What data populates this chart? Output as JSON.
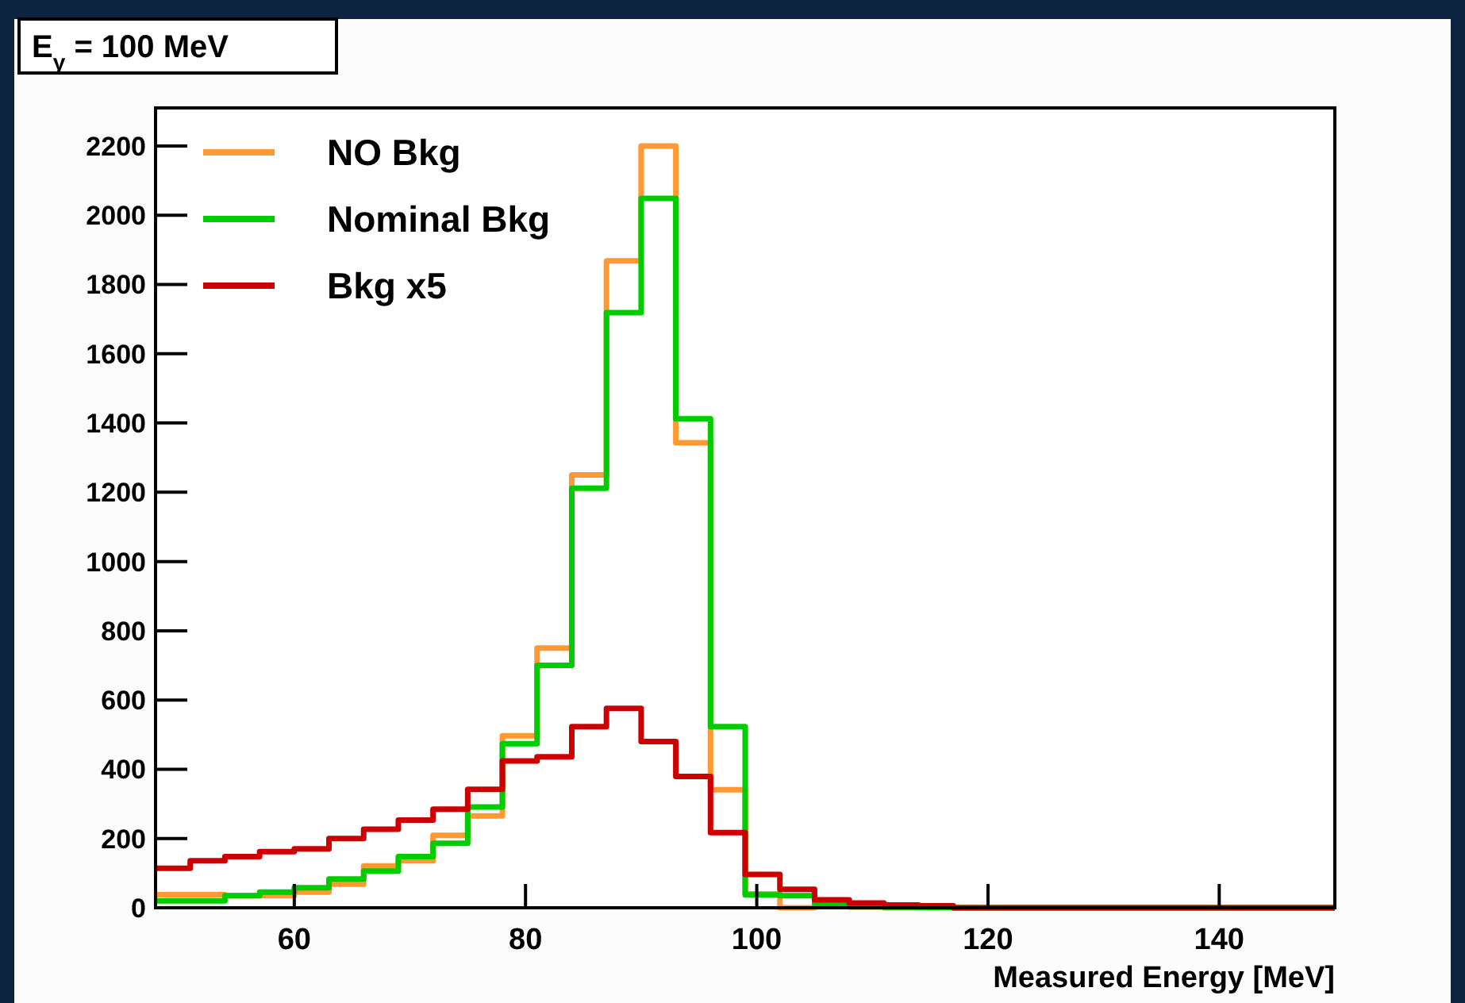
{
  "chart_data": {
    "type": "histogram",
    "title": "E$_{γ}$ = 100 MeV",
    "xlabel": "Measured Energy [MeV]",
    "bins": [
      48,
      51,
      54,
      57,
      60,
      63,
      66,
      69,
      72,
      75,
      78,
      81,
      84,
      87,
      90,
      93,
      96,
      99,
      102,
      105,
      108,
      111,
      114,
      117,
      120,
      123,
      126,
      129,
      132,
      135,
      138,
      141,
      144,
      147,
      150
    ],
    "series": [
      {
        "name": "NO Bkg",
        "color": "#ff9933",
        "values": [
          38,
          38,
          35,
          35,
          45,
          68,
          121,
          136,
          209,
          265,
          497,
          750,
          1250,
          1868,
          2200,
          1343,
          341,
          40,
          0,
          5,
          3,
          0,
          0,
          0,
          0,
          0,
          0,
          0,
          0,
          0,
          0,
          0,
          0,
          0
        ]
      },
      {
        "name": "Nominal Bkg",
        "color": "#00cc00",
        "values": [
          20,
          20,
          35,
          45,
          58,
          83,
          106,
          148,
          186,
          291,
          474,
          700,
          1212,
          1719,
          2049,
          1412,
          523,
          37,
          35,
          11,
          3,
          2,
          1,
          0,
          0,
          0,
          0,
          0,
          0,
          0,
          0,
          0,
          0,
          0
        ]
      },
      {
        "name": "Bkg x5",
        "color": "#cc0000",
        "values": [
          114,
          136,
          148,
          162,
          170,
          200,
          227,
          253,
          285,
          342,
          424,
          436,
          523,
          576,
          480,
          379,
          217,
          96,
          53,
          23,
          14,
          8,
          6,
          0,
          0,
          0,
          0,
          0,
          0,
          0,
          0,
          0,
          0,
          0
        ]
      }
    ],
    "xlim": [
      48,
      150
    ],
    "xticks": [
      60,
      80,
      100,
      120,
      140
    ],
    "ylim": [
      0,
      2310
    ],
    "yticks": [
      0,
      200,
      400,
      600,
      800,
      1000,
      1200,
      1400,
      1600,
      1800,
      2000,
      2200
    ],
    "legend": "top left",
    "grid": false
  }
}
